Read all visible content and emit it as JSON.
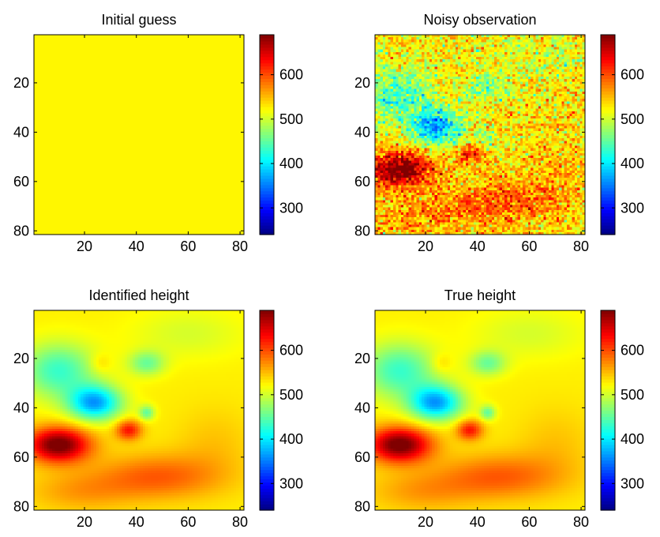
{
  "colormap": "jet",
  "chart_data": [
    {
      "type": "heatmap",
      "title": "Initial guess",
      "field": "constant",
      "constant_value": 525,
      "xlim": [
        0.5,
        81.5
      ],
      "ylim": [
        0.5,
        81.5
      ],
      "y_reversed": true,
      "xticks": [
        "20",
        "40",
        "60",
        "80"
      ],
      "yticks": [
        "20",
        "40",
        "60",
        "80"
      ],
      "colorbar": {
        "clim": [
          240,
          690
        ],
        "ticks": [
          "300",
          "400",
          "500",
          "600"
        ]
      }
    },
    {
      "type": "heatmap",
      "title": "Noisy observation",
      "field": "height",
      "noise": 32,
      "xlim": [
        0.5,
        81.5
      ],
      "ylim": [
        0.5,
        81.5
      ],
      "y_reversed": true,
      "xticks": [
        "20",
        "40",
        "60",
        "80"
      ],
      "yticks": [
        "20",
        "40",
        "60",
        "80"
      ],
      "colorbar": {
        "clim": [
          240,
          690
        ],
        "ticks": [
          "300",
          "400",
          "500",
          "600"
        ]
      }
    },
    {
      "type": "heatmap",
      "title": "Identified height",
      "field": "height",
      "noise": 0,
      "xlim": [
        0.5,
        81.5
      ],
      "ylim": [
        0.5,
        81.5
      ],
      "y_reversed": true,
      "xticks": [
        "20",
        "40",
        "60",
        "80"
      ],
      "yticks": [
        "20",
        "40",
        "60",
        "80"
      ],
      "colorbar": {
        "clim": [
          240,
          690
        ],
        "ticks": [
          "300",
          "400",
          "500",
          "600"
        ]
      }
    },
    {
      "type": "heatmap",
      "title": "True height",
      "field": "height",
      "noise": 0,
      "xlim": [
        0.5,
        81.5
      ],
      "ylim": [
        0.5,
        81.5
      ],
      "y_reversed": true,
      "xticks": [
        "20",
        "40",
        "60",
        "80"
      ],
      "yticks": [
        "20",
        "40",
        "60",
        "80"
      ],
      "colorbar": {
        "clim": [
          240,
          690
        ],
        "ticks": [
          "300",
          "400",
          "500",
          "600"
        ]
      }
    }
  ]
}
